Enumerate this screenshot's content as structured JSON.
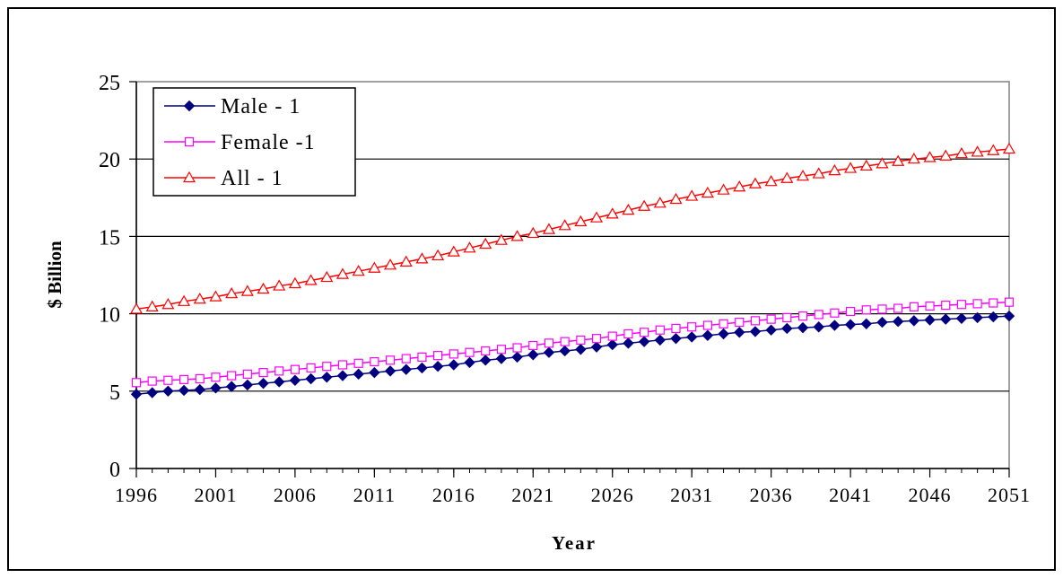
{
  "chart_data": {
    "type": "line",
    "title": "",
    "xlabel": "Year",
    "ylabel": "$ Billion",
    "xlim": [
      1996,
      2051
    ],
    "ylim": [
      0,
      25
    ],
    "x_ticks": [
      "1996",
      "2001",
      "2006",
      "2011",
      "2016",
      "2021",
      "2026",
      "2031",
      "2036",
      "2041",
      "2046",
      "2051"
    ],
    "y_ticks": [
      "0",
      "5",
      "10",
      "15",
      "20",
      "25"
    ],
    "grid": "horizontal",
    "legend_position": "top-left",
    "x": [
      1996,
      1997,
      1998,
      1999,
      2000,
      2001,
      2002,
      2003,
      2004,
      2005,
      2006,
      2007,
      2008,
      2009,
      2010,
      2011,
      2012,
      2013,
      2014,
      2015,
      2016,
      2017,
      2018,
      2019,
      2020,
      2021,
      2022,
      2023,
      2024,
      2025,
      2026,
      2027,
      2028,
      2029,
      2030,
      2031,
      2032,
      2033,
      2034,
      2035,
      2036,
      2037,
      2038,
      2039,
      2040,
      2041,
      2042,
      2043,
      2044,
      2045,
      2046,
      2047,
      2048,
      2049,
      2050,
      2051
    ],
    "series": [
      {
        "name": "Male - 1",
        "color": "#000080",
        "marker": "diamond-filled",
        "values": [
          4.8,
          4.9,
          5.0,
          5.05,
          5.1,
          5.2,
          5.3,
          5.4,
          5.5,
          5.6,
          5.7,
          5.8,
          5.9,
          6.0,
          6.1,
          6.2,
          6.3,
          6.4,
          6.5,
          6.6,
          6.7,
          6.85,
          7.0,
          7.1,
          7.2,
          7.35,
          7.5,
          7.6,
          7.7,
          7.85,
          8.0,
          8.1,
          8.2,
          8.3,
          8.4,
          8.5,
          8.6,
          8.7,
          8.8,
          8.85,
          8.95,
          9.05,
          9.1,
          9.15,
          9.25,
          9.3,
          9.35,
          9.45,
          9.5,
          9.55,
          9.6,
          9.65,
          9.7,
          9.75,
          9.8,
          9.85
        ]
      },
      {
        "name": "Female -1",
        "color": "#ff00ff",
        "marker": "square-open",
        "values": [
          5.55,
          5.65,
          5.7,
          5.75,
          5.8,
          5.9,
          6.0,
          6.1,
          6.2,
          6.3,
          6.4,
          6.5,
          6.6,
          6.7,
          6.8,
          6.9,
          7.0,
          7.1,
          7.2,
          7.3,
          7.4,
          7.5,
          7.6,
          7.7,
          7.8,
          7.95,
          8.1,
          8.2,
          8.3,
          8.4,
          8.55,
          8.7,
          8.8,
          8.95,
          9.05,
          9.15,
          9.25,
          9.35,
          9.45,
          9.55,
          9.65,
          9.75,
          9.85,
          9.95,
          10.05,
          10.15,
          10.25,
          10.3,
          10.35,
          10.45,
          10.5,
          10.55,
          10.6,
          10.65,
          10.7,
          10.75
        ]
      },
      {
        "name": "All - 1",
        "color": "#ff0000",
        "marker": "triangle-open",
        "values": [
          10.3,
          10.45,
          10.6,
          10.8,
          10.95,
          11.1,
          11.3,
          11.45,
          11.6,
          11.8,
          11.95,
          12.15,
          12.35,
          12.55,
          12.75,
          12.95,
          13.15,
          13.35,
          13.55,
          13.75,
          14.0,
          14.25,
          14.5,
          14.75,
          15.0,
          15.2,
          15.45,
          15.7,
          15.95,
          16.2,
          16.45,
          16.7,
          16.95,
          17.15,
          17.4,
          17.6,
          17.8,
          18.0,
          18.2,
          18.4,
          18.55,
          18.75,
          18.9,
          19.05,
          19.25,
          19.4,
          19.55,
          19.7,
          19.85,
          20.0,
          20.1,
          20.2,
          20.35,
          20.45,
          20.55,
          20.65
        ]
      }
    ]
  }
}
